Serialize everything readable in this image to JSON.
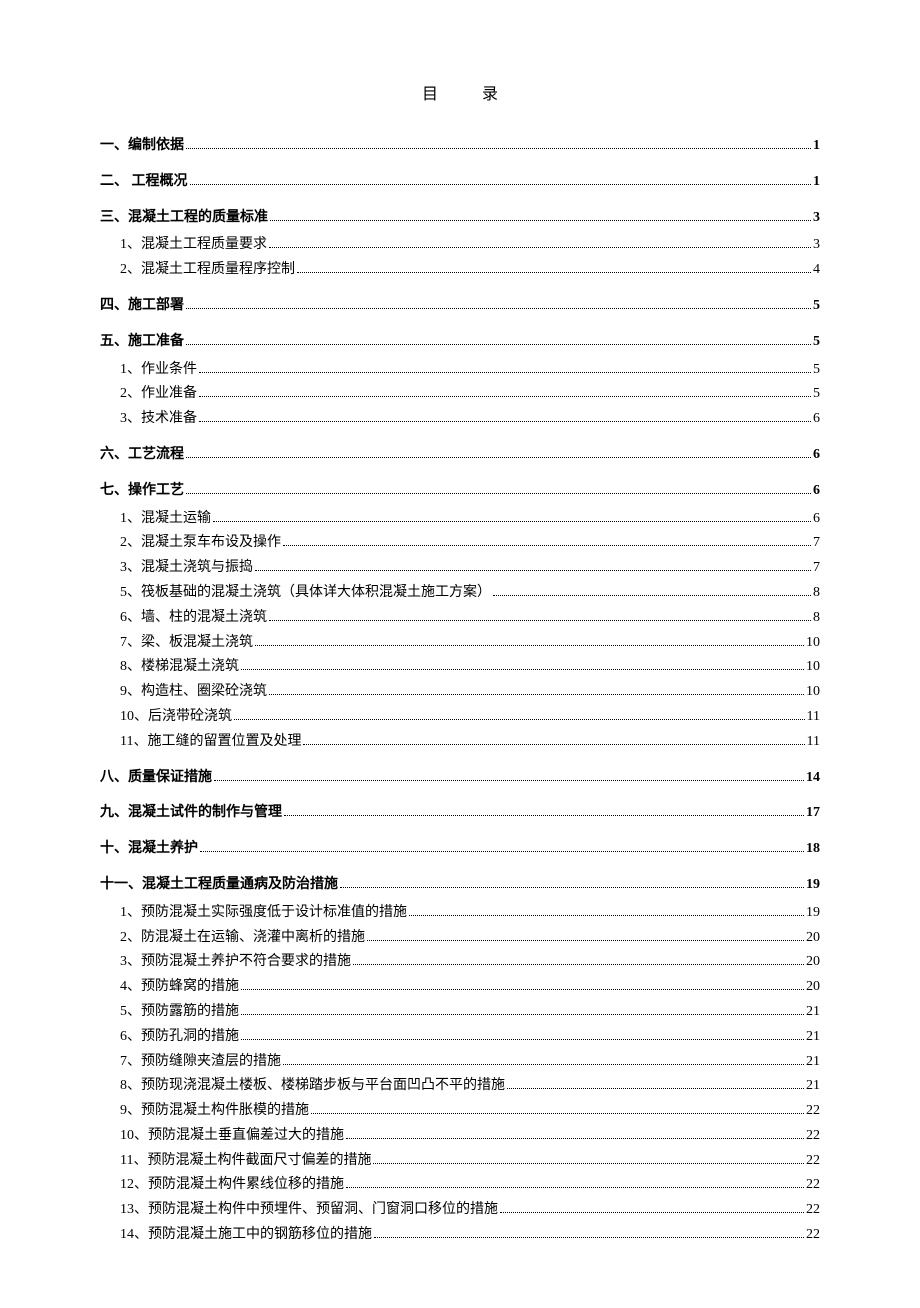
{
  "title": "目    录",
  "fontsize_title": 16,
  "fontsize_body": 14,
  "text_color": "#000000",
  "background_color": "#ffffff",
  "entries": [
    {
      "level": 1,
      "label": "一、编制依据",
      "page": "1"
    },
    {
      "level": 1,
      "label": "二、    工程概况",
      "page": "1",
      "indent": true
    },
    {
      "level": 1,
      "label": "三、混凝土工程的质量标准",
      "page": "3"
    },
    {
      "level": 2,
      "label": "1、混凝土工程质量要求",
      "page": "3"
    },
    {
      "level": 2,
      "label": "2、混凝土工程质量程序控制",
      "page": "4"
    },
    {
      "level": 1,
      "label": "四、施工部署",
      "page": "5"
    },
    {
      "level": 1,
      "label": "五、施工准备",
      "page": "5"
    },
    {
      "level": 2,
      "label": "1、作业条件",
      "page": "5"
    },
    {
      "level": 2,
      "label": "2、作业准备",
      "page": "5"
    },
    {
      "level": 2,
      "label": "3、技术准备",
      "page": "6"
    },
    {
      "level": 1,
      "label": "六、工艺流程",
      "page": "6"
    },
    {
      "level": 1,
      "label": "七、操作工艺",
      "page": "6"
    },
    {
      "level": 2,
      "label": "1、混凝土运输",
      "page": "6"
    },
    {
      "level": 2,
      "label": "2、混凝土泵车布设及操作",
      "page": "7"
    },
    {
      "level": 2,
      "label": "3、混凝土浇筑与振捣",
      "page": "7"
    },
    {
      "level": 2,
      "label": "5、筏板基础的混凝土浇筑（具体详大体积混凝土施工方案）",
      "page": "8"
    },
    {
      "level": 2,
      "label": "6、墙、柱的混凝土浇筑",
      "page": "8"
    },
    {
      "level": 2,
      "label": "7、梁、板混凝土浇筑",
      "page": "10"
    },
    {
      "level": 2,
      "label": "8、楼梯混凝土浇筑",
      "page": "10"
    },
    {
      "level": 2,
      "label": "9、构造柱、圈梁砼浇筑",
      "page": "10"
    },
    {
      "level": 2,
      "label": "10、后浇带砼浇筑",
      "page": "11"
    },
    {
      "level": 2,
      "label": "11、施工缝的留置位置及处理",
      "page": "11"
    },
    {
      "level": 1,
      "label": "八、质量保证措施",
      "page": "14"
    },
    {
      "level": 1,
      "label": "九、混凝土试件的制作与管理",
      "page": "17"
    },
    {
      "level": 1,
      "label": "十、混凝土养护",
      "page": "18"
    },
    {
      "level": 1,
      "label": "十一、混凝土工程质量通病及防治措施",
      "page": "19"
    },
    {
      "level": 2,
      "label": "1、预防混凝土实际强度低于设计标准值的措施",
      "page": "19"
    },
    {
      "level": 2,
      "label": "2、防混凝土在运输、浇灌中离析的措施",
      "page": "20"
    },
    {
      "level": 2,
      "label": "3、预防混凝土养护不符合要求的措施",
      "page": "20"
    },
    {
      "level": 2,
      "label": "4、预防蜂窝的措施",
      "page": "20"
    },
    {
      "level": 2,
      "label": "5、预防露筋的措施",
      "page": "21"
    },
    {
      "level": 2,
      "label": "6、预防孔洞的措施",
      "page": "21"
    },
    {
      "level": 2,
      "label": "7、预防缝隙夹渣层的措施",
      "page": "21"
    },
    {
      "level": 2,
      "label": "8、预防现浇混凝土楼板、楼梯踏步板与平台面凹凸不平的措施",
      "page": "21"
    },
    {
      "level": 2,
      "label": "9、预防混凝土构件胀模的措施",
      "page": "22"
    },
    {
      "level": 2,
      "label": "10、预防混凝土垂直偏差过大的措施",
      "page": "22"
    },
    {
      "level": 2,
      "label": "11、预防混凝土构件截面尺寸偏差的措施",
      "page": "22"
    },
    {
      "level": 2,
      "label": "12、预防混凝土构件累线位移的措施",
      "page": "22"
    },
    {
      "level": 2,
      "label": "13、预防混凝土构件中预埋件、预留洞、门窗洞口移位的措施",
      "page": "22"
    },
    {
      "level": 2,
      "label": "14、预防混凝土施工中的钢筋移位的措施",
      "page": "22"
    }
  ]
}
